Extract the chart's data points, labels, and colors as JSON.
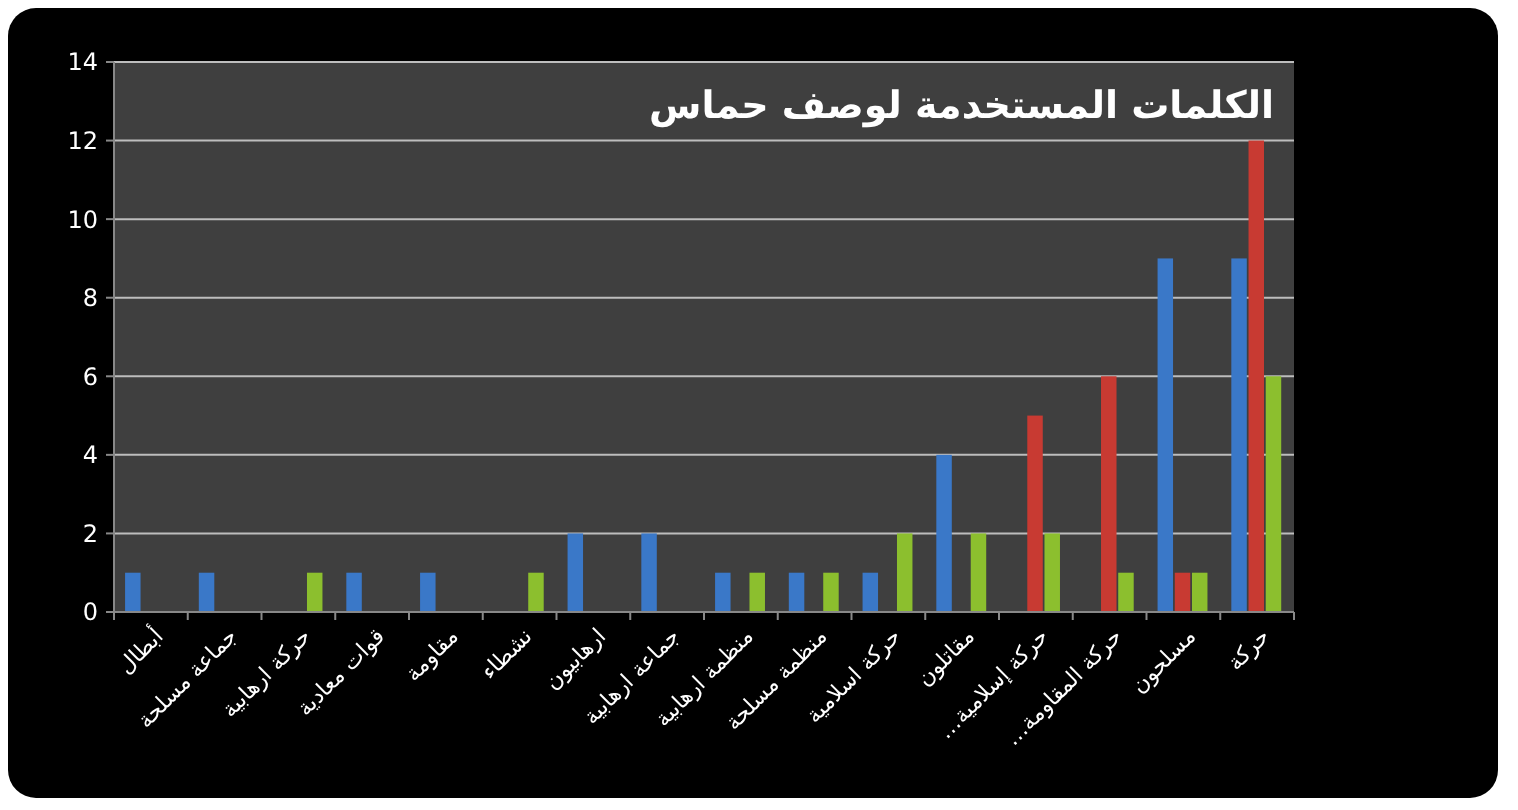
{
  "chart_data": {
    "type": "bar",
    "title": "الكلمات المستخدمة لوصف حماس",
    "categories": [
      "أبطال",
      "جماعة مسلحة",
      "حركة ارهابية",
      "قوات معادية",
      "مقاومة",
      "نشطاء",
      "ارهابيون",
      "جماعة ارهابية",
      "منظمة ارهابية",
      "منظمة مسلحة",
      "حركة اسلامية",
      "مقاتلون",
      "حركة إسلامية…",
      "حركة المقاومة…",
      "مسلحون",
      "حركة"
    ],
    "series": [
      {
        "color": "#3a78c8",
        "values": [
          1,
          1,
          0,
          1,
          1,
          0,
          2,
          2,
          1,
          1,
          1,
          4,
          0,
          0,
          9,
          9
        ]
      },
      {
        "color": "#c83a32",
        "values": [
          0,
          0,
          0,
          0,
          0,
          0,
          0,
          0,
          0,
          0,
          0,
          0,
          5,
          6,
          1,
          12
        ]
      },
      {
        "color": "#8cbf2e",
        "values": [
          0,
          0,
          1,
          0,
          0,
          1,
          0,
          0,
          1,
          1,
          2,
          2,
          2,
          1,
          1,
          6
        ]
      }
    ],
    "ylim": [
      0,
      14
    ],
    "yticks": [
      0,
      2,
      4,
      6,
      8,
      10,
      12,
      14
    ],
    "grid": "y"
  }
}
